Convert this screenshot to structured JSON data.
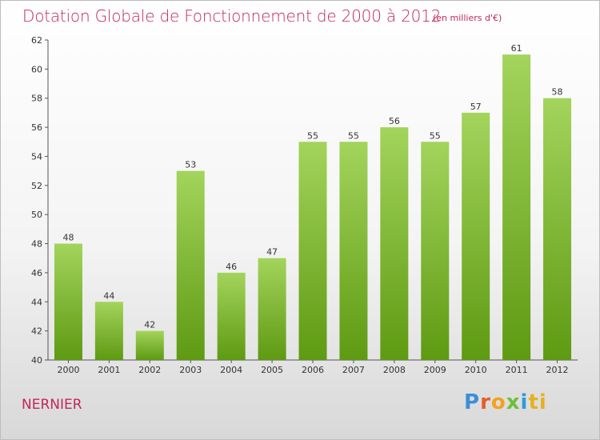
{
  "header": {
    "title": "Dotation Globale de Fonctionnement de 2000 à 2012",
    "unit": "(en milliers d'€)"
  },
  "footer": {
    "town": "NERNIER",
    "logo": "Proxiti"
  },
  "colors": {
    "title": "#c0285a",
    "bar_top": "#a3d45c",
    "bar_bottom": "#5e9a12"
  },
  "chart_data": {
    "type": "bar",
    "title": "Dotation Globale de Fonctionnement de 2000 à 2012",
    "subtitle": "(en milliers d'€)",
    "categories": [
      "2000",
      "2001",
      "2002",
      "2003",
      "2004",
      "2005",
      "2006",
      "2007",
      "2008",
      "2009",
      "2010",
      "2011",
      "2012"
    ],
    "values": [
      48,
      44,
      42,
      53,
      46,
      47,
      55,
      55,
      56,
      55,
      57,
      61,
      58
    ],
    "ylim": [
      40,
      62
    ],
    "yticks": [
      40,
      42,
      44,
      46,
      48,
      50,
      52,
      54,
      56,
      58,
      60,
      62
    ],
    "grid": false,
    "legend": "none"
  }
}
